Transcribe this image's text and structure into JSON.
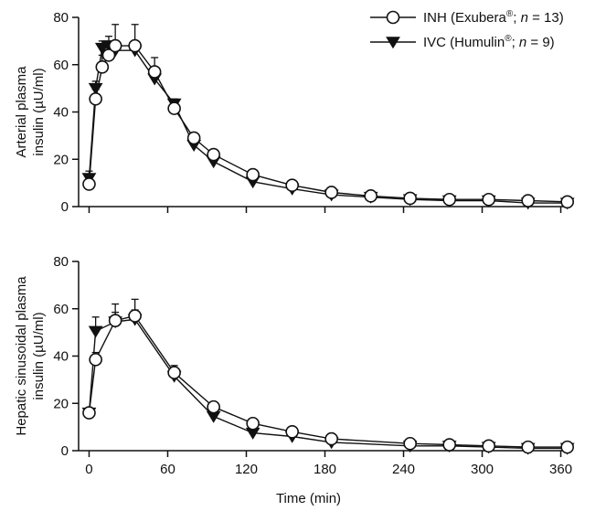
{
  "chart_data": [
    {
      "type": "line",
      "ylabel_lines": [
        "Arterial plasma",
        "insulin (µU/ml)"
      ],
      "xlabel": "",
      "xlim": [
        -8,
        368
      ],
      "ylim": [
        0,
        80
      ],
      "yticks": [
        0,
        20,
        40,
        60,
        80
      ],
      "xticks": [
        0,
        60,
        120,
        180,
        240,
        300,
        360
      ],
      "show_x_tick_labels": false,
      "grid": false,
      "legend": {
        "placement": "top-right",
        "entries": [
          {
            "marker": "open-circle",
            "prefix": "INH (Exubera",
            "sup": "®",
            "mid": "; ",
            "italic": "n",
            "suffix": " = 13)"
          },
          {
            "marker": "filled-triangle-down",
            "prefix": "IVC (Humulin",
            "sup": "®",
            "mid": "; ",
            "italic": "n",
            "suffix": " = 9)"
          }
        ]
      },
      "series": [
        {
          "key": "inh",
          "marker": "open-circle",
          "x": [
            0,
            5,
            10,
            15,
            20,
            35,
            50,
            65,
            80,
            95,
            125,
            155,
            185,
            215,
            245,
            275,
            305,
            335,
            365
          ],
          "y": [
            9.5,
            45.5,
            59,
            64,
            68,
            68,
            57,
            41.5,
            29,
            22,
            13.5,
            9,
            6,
            4.5,
            3.5,
            3,
            3,
            2.5,
            2
          ],
          "err_upper": [
            3,
            4,
            5,
            6,
            9,
            9,
            6,
            3,
            2,
            2,
            1,
            1,
            1,
            0.5,
            0.5,
            0.5,
            0.5,
            0.5,
            0.5
          ]
        },
        {
          "key": "ivc",
          "marker": "filled-triangle-down",
          "x": [
            0,
            5,
            10,
            15,
            20,
            35,
            50,
            65,
            80,
            95,
            125,
            155,
            185,
            215,
            245,
            275,
            305,
            335,
            365
          ],
          "y": [
            12,
            50,
            67,
            68,
            66,
            66,
            54,
            43.5,
            26,
            19,
            10.5,
            7.5,
            5,
            4,
            3,
            2.5,
            2.5,
            1.5,
            1.5
          ],
          "err_upper": [
            3,
            3,
            3,
            4,
            4,
            4,
            3,
            2,
            2,
            2,
            1,
            1,
            1,
            0.5,
            0.5,
            0.5,
            0.5,
            0.5,
            0.5
          ]
        }
      ]
    },
    {
      "type": "line",
      "ylabel_lines": [
        "Hepatic sinusoidal plasma",
        "insulin (µU/ml)"
      ],
      "xlabel": "Time (min)",
      "xlim": [
        -8,
        368
      ],
      "ylim": [
        0,
        80
      ],
      "yticks": [
        0,
        20,
        40,
        60,
        80
      ],
      "xticks": [
        0,
        60,
        120,
        180,
        240,
        300,
        360
      ],
      "show_x_tick_labels": true,
      "grid": false,
      "series": [
        {
          "key": "inh",
          "marker": "open-circle",
          "x": [
            0,
            5,
            20,
            35,
            65,
            95,
            125,
            155,
            185,
            245,
            275,
            305,
            335,
            365
          ],
          "y": [
            16,
            38.5,
            55,
            57,
            33,
            18.5,
            11.5,
            8,
            5,
            3,
            2.5,
            2,
            1.5,
            1.5
          ],
          "err_upper": [
            1,
            3,
            7,
            7,
            3,
            1,
            1,
            1,
            1,
            0.5,
            0.5,
            0.5,
            0.5,
            0.5
          ]
        },
        {
          "key": "ivc",
          "marker": "filled-triangle-down",
          "x": [
            0,
            5,
            20,
            35,
            65,
            95,
            125,
            155,
            185,
            245,
            275,
            305,
            335,
            365
          ],
          "y": [
            16,
            50.5,
            54.5,
            55.5,
            31.5,
            14.5,
            7.5,
            6,
            3.5,
            2,
            2,
            1.5,
            1,
            1
          ],
          "err_upper": [
            1,
            6,
            4,
            4,
            3,
            1,
            1,
            1,
            1,
            0.5,
            0.5,
            0.5,
            0.5,
            0.5
          ]
        }
      ]
    }
  ],
  "colors": {
    "ink": "#111111",
    "background": "#ffffff"
  }
}
